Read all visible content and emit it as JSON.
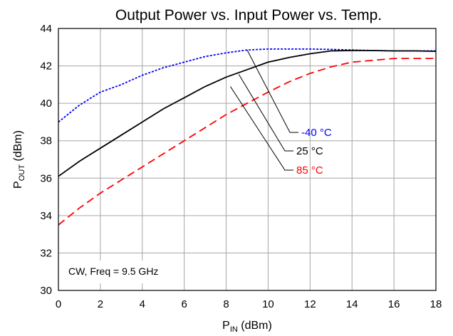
{
  "chart_data": {
    "type": "line",
    "title": "Output Power vs. Input Power vs. Temp.",
    "xlabel": {
      "main": "P",
      "sub": "IN",
      "rest": " (dBm)"
    },
    "ylabel": {
      "main": "P",
      "sub": "OUT",
      "rest": " (dBm)"
    },
    "xlim": [
      0,
      18
    ],
    "ylim": [
      30,
      44
    ],
    "xticks": [
      0,
      2,
      4,
      6,
      8,
      10,
      12,
      14,
      16,
      18
    ],
    "yticks": [
      30,
      32,
      34,
      36,
      38,
      40,
      42,
      44
    ],
    "grid": true,
    "annotation": "CW, Freq = 9.5 GHz",
    "series": [
      {
        "name": "-40 °C",
        "color": "#0000ff",
        "style": "dotted",
        "x": [
          0,
          1,
          2,
          3,
          4,
          5,
          6,
          7,
          8,
          9,
          10,
          11,
          12,
          13,
          14,
          15,
          16,
          17,
          18
        ],
        "y": [
          39.0,
          39.9,
          40.6,
          41.0,
          41.5,
          41.9,
          42.2,
          42.5,
          42.7,
          42.85,
          42.9,
          42.9,
          42.9,
          42.88,
          42.85,
          42.82,
          42.8,
          42.8,
          42.8
        ]
      },
      {
        "name": "25 °C",
        "color": "#000000",
        "style": "solid",
        "x": [
          0,
          1,
          2,
          3,
          4,
          5,
          6,
          7,
          8,
          9,
          10,
          11,
          12,
          13,
          14,
          15,
          16,
          17,
          18
        ],
        "y": [
          36.1,
          36.9,
          37.6,
          38.3,
          39.0,
          39.7,
          40.3,
          40.9,
          41.4,
          41.8,
          42.2,
          42.45,
          42.65,
          42.8,
          42.82,
          42.82,
          42.8,
          42.8,
          42.78
        ]
      },
      {
        "name": "85 °C",
        "color": "#ff0000",
        "style": "dashed",
        "x": [
          0,
          1,
          2,
          3,
          4,
          5,
          6,
          7,
          8,
          9,
          10,
          11,
          12,
          13,
          14,
          15,
          16,
          17,
          18
        ],
        "y": [
          33.5,
          34.4,
          35.2,
          35.9,
          36.6,
          37.3,
          38.0,
          38.7,
          39.4,
          40.0,
          40.6,
          41.15,
          41.6,
          41.95,
          42.2,
          42.3,
          42.4,
          42.4,
          42.4
        ]
      }
    ]
  }
}
